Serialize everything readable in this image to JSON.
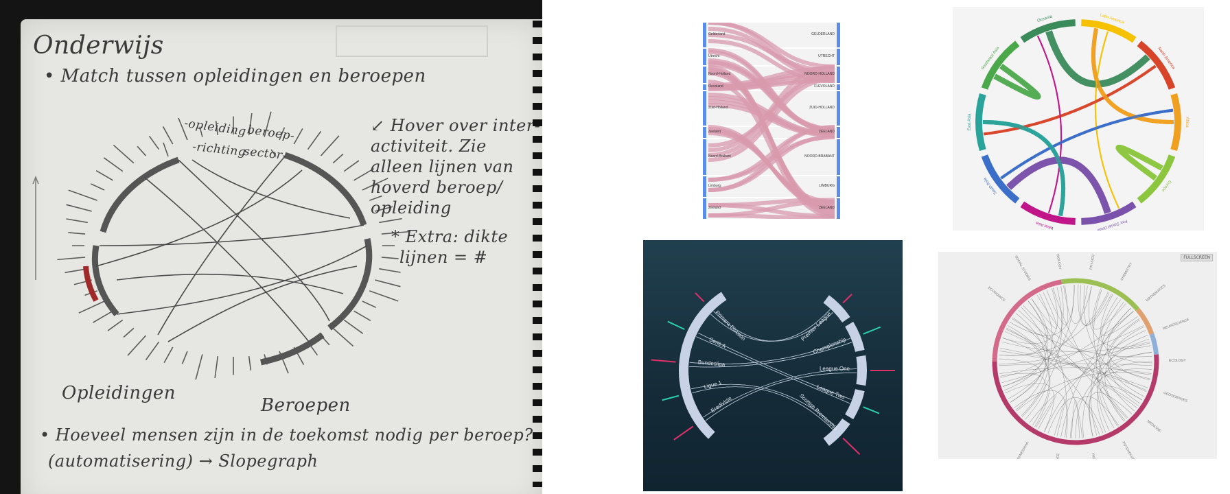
{
  "sketch": {
    "title": "Onderwijs",
    "bullet1": "• Match tussen opleidingen en beroepen",
    "label_opleiding": "-opleiding",
    "label_richting": "-richting",
    "label_beroep": "beroep-",
    "label_sector": "sector-",
    "note_lines": [
      "↙ Hover over inter-",
      "activiteit. Zie",
      "alleen lijnen van",
      "hoverd beroep/",
      "opleiding"
    ],
    "extra_lines": [
      "* Extra: dikte",
      "lijnen = #"
    ],
    "label_opleidingen": "Opleidingen",
    "label_beroepen": "Beroepen",
    "bullet2_line1": "• Hoeveel mensen zijn in de toekomst nodig per beroep?",
    "bullet2_line2": "(automatisering) → Slopegraph"
  },
  "sankey": {
    "left_labels": [
      "Gelderland",
      "Utrecht",
      "Noord-Holland",
      "Flevoland",
      "Zuid-Holland",
      "Zeeland",
      "Noord-Brabant",
      "Limburg",
      "Zeeland"
    ],
    "right_labels": [
      "GELDERLAND",
      "UTRECHT",
      "NOORD-HOLLAND",
      "FLEVOLAND",
      "ZUID-HOLLAND",
      "ZEELAND",
      "NOORD-BRABANT",
      "LIMBURG",
      "ZEELAND"
    ],
    "bar_color": "#5b8de8",
    "flow_color": "#d89aae"
  },
  "chord_world": {
    "regions": [
      {
        "name": "Latin America",
        "color": "#f6c200"
      },
      {
        "name": "North America",
        "color": "#d8442a"
      },
      {
        "name": "Africa",
        "color": "#f0a020"
      },
      {
        "name": "Europe",
        "color": "#8cc63f"
      },
      {
        "name": "Fmr Soviet Union",
        "color": "#7b52ab"
      },
      {
        "name": "West Asia",
        "color": "#c0168a"
      },
      {
        "name": "South Asia",
        "color": "#3a6ec8"
      },
      {
        "name": "East Asia",
        "color": "#2aa39a"
      },
      {
        "name": "Southeast Asia",
        "color": "#4aa84a"
      },
      {
        "name": "Oceania",
        "color": "#3a8a5a"
      }
    ]
  },
  "chord_football": {
    "left_leagues": [
      "Primera División",
      "Serie A",
      "Bundesliga",
      "Ligue 1",
      "Eredivisie"
    ],
    "right_leagues": [
      "Premier League",
      "Championship",
      "League One",
      "League Two",
      "Scottish Premiership"
    ]
  },
  "chord_grey": {
    "fullscreen_label": "FULLSCREEN",
    "outer_labels": [
      "ECONOMICS",
      "SOCIAL STUDIES",
      "BIOLOGY",
      "PHYSICS",
      "CHEMISTRY",
      "MATHEMATICS",
      "NEUROSCIENCE",
      "ECOLOGY",
      "GEOSCIENCES",
      "MEDICINE",
      "PSYCHOLOGY",
      "PATHOLOGY",
      "COMPUTER SCIENCE",
      "ENGINEERING"
    ]
  }
}
